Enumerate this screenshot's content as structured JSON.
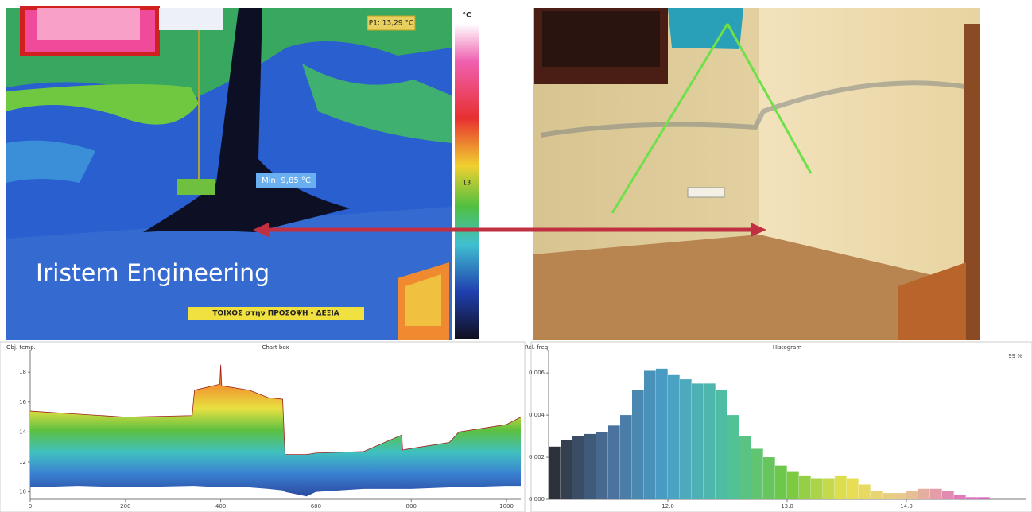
{
  "thermal_image": {
    "marker_label": "P1: 13,29 °C",
    "min_label": "Min: 9,85 °C",
    "watermark": "Iristem Engineering",
    "caption": "ΤΟΙΧΟΣ στην ΠΡΟΣΟΨΗ - ΔΕΞΙΑ",
    "scale_unit": "°C",
    "scale_tick": "13"
  },
  "chart_data": [
    {
      "type": "range",
      "title": "Chart box",
      "y_label": "Obj. temp.",
      "x": [
        0,
        100,
        200,
        340,
        345,
        398,
        400,
        402,
        460,
        500,
        530,
        535,
        580,
        600,
        700,
        780,
        782,
        800,
        880,
        900,
        1000,
        1030
      ],
      "high": [
        15.4,
        15.2,
        15.0,
        15.1,
        16.8,
        17.2,
        18.5,
        17.1,
        16.8,
        16.3,
        16.2,
        12.5,
        12.5,
        12.6,
        12.7,
        13.8,
        12.8,
        12.9,
        13.3,
        14.0,
        14.5,
        15.0
      ],
      "low": [
        10.3,
        10.4,
        10.3,
        10.4,
        10.4,
        10.3,
        10.3,
        10.3,
        10.3,
        10.2,
        10.1,
        10.0,
        9.7,
        10.0,
        10.2,
        10.2,
        10.2,
        10.2,
        10.3,
        10.3,
        10.4,
        10.4
      ],
      "xlim": [
        0,
        1030
      ],
      "xticks": [
        0,
        200,
        400,
        600,
        800,
        1000
      ],
      "ylim": [
        9.5,
        19.5
      ],
      "yticks": [
        10,
        12,
        14,
        16,
        18
      ],
      "colormap": [
        "#e83a30",
        "#f09a30",
        "#e8e040",
        "#5cc040",
        "#40c0c0",
        "#3a7fd0",
        "#2a4aa0"
      ]
    },
    {
      "type": "histogram",
      "title": "Histogram",
      "y_label": "Rel. freq.",
      "annotation": "99 %",
      "bins": [
        11.0,
        11.1,
        11.2,
        11.3,
        11.4,
        11.5,
        11.6,
        11.7,
        11.8,
        11.9,
        12.0,
        12.1,
        12.2,
        12.3,
        12.4,
        12.5,
        12.6,
        12.7,
        12.8,
        12.9,
        13.0,
        13.1,
        13.2,
        13.3,
        13.4,
        13.5,
        13.6,
        13.7,
        13.8,
        13.9,
        14.0,
        14.1,
        14.2,
        14.3,
        14.4,
        14.5,
        14.6,
        14.7,
        14.8,
        14.9,
        15.0
      ],
      "counts": [
        0.0025,
        0.0028,
        0.003,
        0.0031,
        0.0032,
        0.0035,
        0.004,
        0.0052,
        0.0061,
        0.0062,
        0.0059,
        0.0057,
        0.0055,
        0.0055,
        0.0052,
        0.004,
        0.003,
        0.0024,
        0.002,
        0.0016,
        0.0013,
        0.0011,
        0.001,
        0.001,
        0.0011,
        0.001,
        0.0007,
        0.0004,
        0.0003,
        0.0003,
        0.0004,
        0.0005,
        0.0005,
        0.0004,
        0.0002,
        0.0001,
        0.0001,
        0.0,
        0,
        0
      ],
      "xlim": [
        11.0,
        15.0
      ],
      "xticks": [
        {
          "value": 12,
          "label": "12.0"
        },
        {
          "value": 13,
          "label": "13.0"
        },
        {
          "value": 14,
          "label": "14.0"
        }
      ],
      "ylim": [
        0,
        0.0071
      ],
      "yticks": [
        {
          "value": 0,
          "label": "0.000"
        },
        {
          "value": 0.002,
          "label": "0.002"
        },
        {
          "value": 0.004,
          "label": "0.004"
        },
        {
          "value": 0.006,
          "label": "0.006"
        }
      ],
      "colormap": [
        "#2a2a30",
        "#4a6f9a",
        "#4aa0c8",
        "#50c0a0",
        "#70c840",
        "#e8e050",
        "#e8c890",
        "#e070c0",
        "#d050b0"
      ]
    }
  ]
}
